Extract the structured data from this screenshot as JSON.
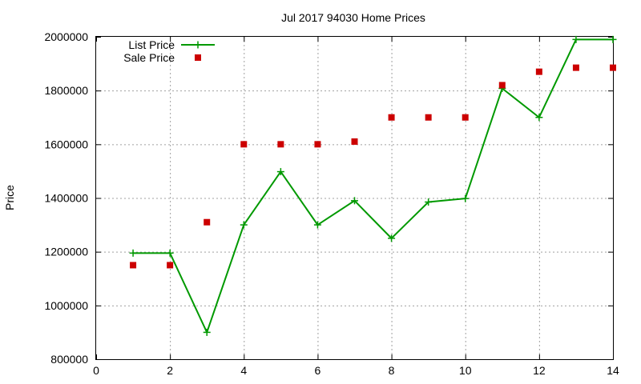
{
  "chart_data": {
    "type": "line",
    "title": "Jul 2017 94030 Home Prices",
    "xlabel": "",
    "ylabel": "Price",
    "xlim": [
      0,
      14
    ],
    "ylim": [
      800000,
      2000000
    ],
    "xticks": [
      0,
      2,
      4,
      6,
      8,
      10,
      12,
      14
    ],
    "xtick_labels": [
      "0",
      "2",
      "4",
      "6",
      "8",
      "10",
      "12",
      "14"
    ],
    "yticks": [
      800000,
      1000000,
      1200000,
      1400000,
      1600000,
      1800000,
      2000000
    ],
    "ytick_labels": [
      "800000",
      "1000000",
      "1200000",
      "1400000",
      "1600000",
      "1800000",
      "2000000"
    ],
    "grid": true,
    "legend_position": "top-left",
    "series": [
      {
        "name": "List Price",
        "style": "linespoints",
        "color": "#009900",
        "marker": "plus",
        "x": [
          1,
          2,
          3,
          4,
          5,
          6,
          7,
          8,
          9,
          10,
          11,
          12,
          13,
          14
        ],
        "y": [
          1195000,
          1195000,
          900000,
          1300000,
          1498000,
          1300000,
          1390000,
          1250000,
          1385000,
          1398000,
          1808000,
          1700000,
          1990000,
          1990000
        ]
      },
      {
        "name": "Sale Price",
        "style": "points",
        "color": "#cc0000",
        "marker": "square",
        "x": [
          1,
          2,
          3,
          4,
          5,
          6,
          7,
          8,
          9,
          10,
          11,
          12,
          13,
          14
        ],
        "y": [
          1150000,
          1150000,
          1310000,
          1600000,
          1600000,
          1600000,
          1610000,
          1700000,
          1700000,
          1700000,
          1820000,
          1870000,
          1885000,
          1885000
        ]
      }
    ]
  }
}
